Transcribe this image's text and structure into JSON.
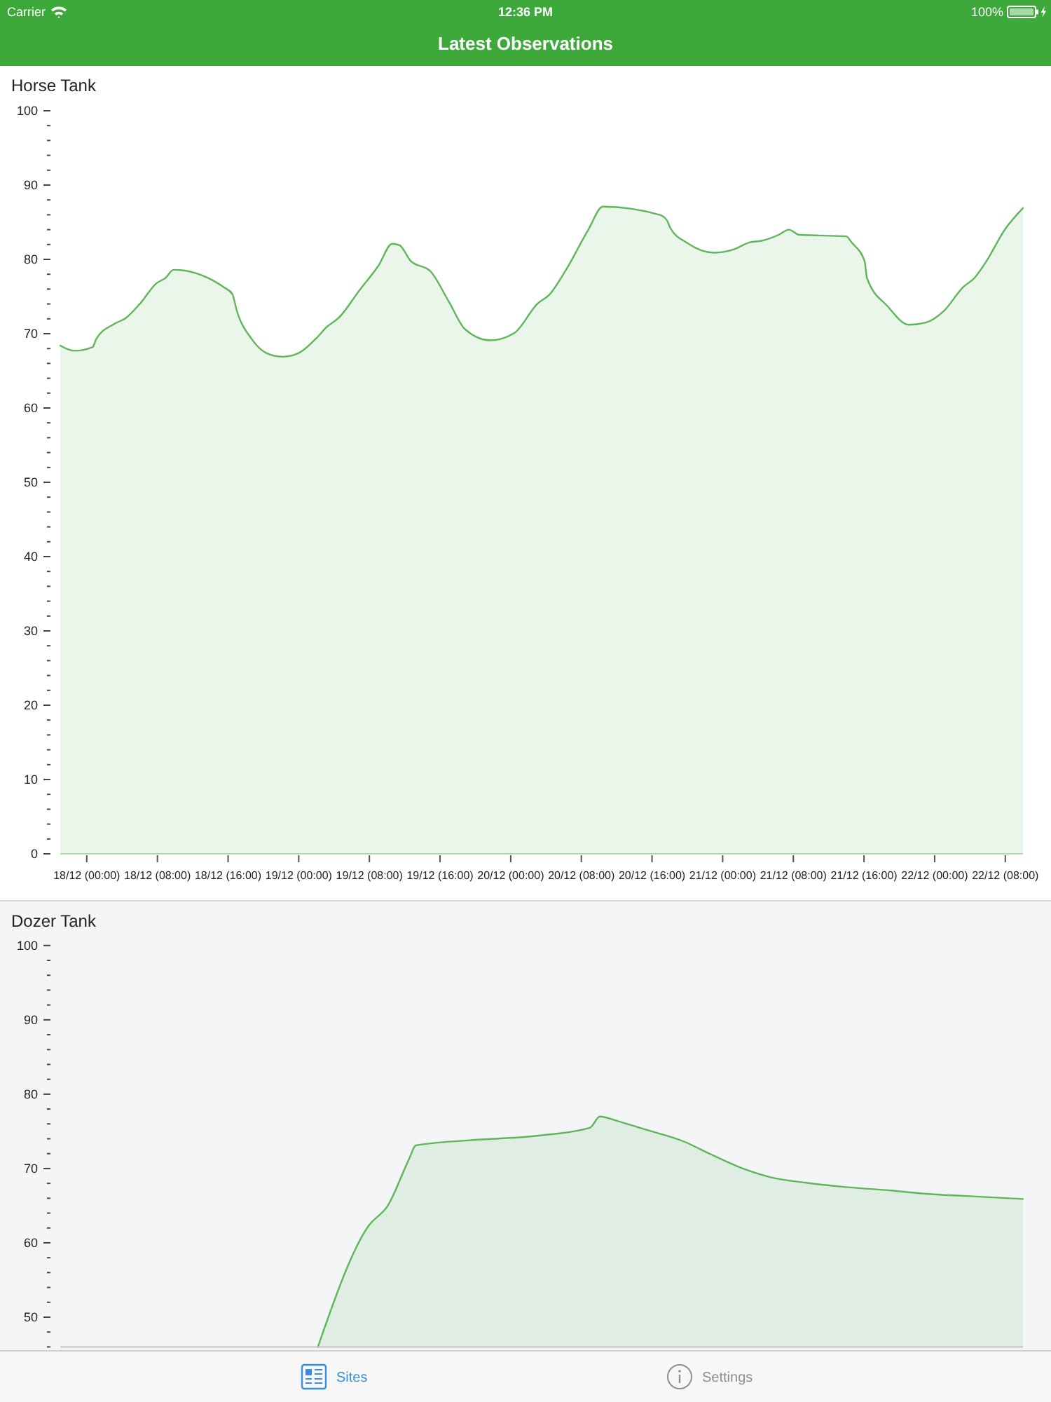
{
  "chart_data": [
    {
      "type": "area",
      "title": "Horse Tank",
      "color": "#5fb65a",
      "x": [
        "--12-17T21:00",
        "--12-17T22:35",
        "--12-18T00:40",
        "--12-18T01:05",
        "--12-18T03:05",
        "--12-18T04:25",
        "--12-18T06:00",
        "--12-18T07:55",
        "--12-18T08:55",
        "--12-18T09:50",
        "--12-18T15:35",
        "--12-18T16:30",
        "--12-18T16:55",
        "--12-18T18:40",
        "--12-18T20:20",
        "--12-18T22:10",
        "--12-19T00:00",
        "--12-19T02:10",
        "--12-19T03:10",
        "--12-19T04:30",
        "--12-19T06:55",
        "--12-19T09:00",
        "--12-19T10:35",
        "--12-19T11:25",
        "--12-19T12:40",
        "--12-19T14:55",
        "--12-19T17:00",
        "--12-19T18:50",
        "--12-19T21:40",
        "--12-20T00:25",
        "--12-20T03:00",
        "--12-20T04:25",
        "--12-20T06:10",
        "--12-20T08:50",
        "--12-20T10:25",
        "--12-20T16:50",
        "--12-20T17:40",
        "--12-20T18:05",
        "--12-20T20:00",
        "--12-20T23:05",
        "--12-21T01:10",
        "--12-21T03:05",
        "--12-21T04:25",
        "--12-21T06:20",
        "--12-21T07:30",
        "--12-21T08:40",
        "--12-21T14:00",
        "--12-21T14:35",
        "--12-21T16:05",
        "--12-21T16:20",
        "--12-21T18:40",
        "--12-21T21:05",
        "--12-21T23:00",
        "--12-22T01:05",
        "--12-22T03:10",
        "--12-22T04:30",
        "--12-22T05:50",
        "--12-22T08:00",
        "--12-22T10:00"
      ],
      "values": [
        68.4,
        67.7,
        68.2,
        69.3,
        71.3,
        72.1,
        74.0,
        76.8,
        77.5,
        78.6,
        76.2,
        75.3,
        73.4,
        69.3,
        67.4,
        66.9,
        67.4,
        69.6,
        70.9,
        72.1,
        75.9,
        79.1,
        82.1,
        81.9,
        79.8,
        78.4,
        74.3,
        70.6,
        69.1,
        70.1,
        74.0,
        75.3,
        78.4,
        84.1,
        87.1,
        86.0,
        85.3,
        84.2,
        82.2,
        80.9,
        81.3,
        82.3,
        82.5,
        83.3,
        84.0,
        83.3,
        83.1,
        82.3,
        79.7,
        77.5,
        73.7,
        71.2,
        71.5,
        73.1,
        76.2,
        77.5,
        79.7,
        84.1,
        86.9
      ],
      "xlim": [
        "--12-17T21:00",
        "--12-22T10:00"
      ],
      "xticks": [
        {
          "value": "--12-18T00:00",
          "label": "18/12 (00:00)"
        },
        {
          "value": "--12-18T08:00",
          "label": "18/12 (08:00)"
        },
        {
          "value": "--12-18T16:00",
          "label": "18/12 (16:00)"
        },
        {
          "value": "--12-19T00:00",
          "label": "19/12 (00:00)"
        },
        {
          "value": "--12-19T08:00",
          "label": "19/12 (08:00)"
        },
        {
          "value": "--12-19T16:00",
          "label": "19/12 (16:00)"
        },
        {
          "value": "--12-20T00:00",
          "label": "20/12 (00:00)"
        },
        {
          "value": "--12-20T08:00",
          "label": "20/12 (08:00)"
        },
        {
          "value": "--12-20T16:00",
          "label": "20/12 (16:00)"
        },
        {
          "value": "--12-21T00:00",
          "label": "21/12 (00:00)"
        },
        {
          "value": "--12-21T08:00",
          "label": "21/12 (08:00)"
        },
        {
          "value": "--12-21T16:00",
          "label": "21/12 (16:00)"
        },
        {
          "value": "--12-22T00:00",
          "label": "22/12 (00:00)"
        },
        {
          "value": "--12-22T08:00",
          "label": "22/12 (08:00)"
        }
      ],
      "ylim": [
        0,
        100
      ],
      "yticks": [
        100,
        {
          "value": 98,
          "label": null
        },
        {
          "value": 96,
          "label": null
        },
        {
          "value": 94,
          "label": null
        },
        {
          "value": 92,
          "label": null
        },
        90,
        {
          "value": 88,
          "label": null
        },
        {
          "value": 86,
          "label": null
        },
        {
          "value": 84,
          "label": null
        },
        {
          "value": 82,
          "label": null
        },
        80,
        {
          "value": 78,
          "label": null
        },
        {
          "value": 76,
          "label": null
        },
        {
          "value": 74,
          "label": null
        },
        {
          "value": 72,
          "label": null
        },
        70,
        {
          "value": 68,
          "label": null
        },
        {
          "value": 66,
          "label": null
        },
        {
          "value": 64,
          "label": null
        },
        {
          "value": 62,
          "label": null
        },
        60,
        {
          "value": 58,
          "label": null
        },
        {
          "value": 56,
          "label": null
        },
        {
          "value": 54,
          "label": null
        },
        {
          "value": 52,
          "label": null
        },
        50,
        {
          "value": 48,
          "label": null
        },
        {
          "value": 46,
          "label": null
        },
        {
          "value": 44,
          "label": null
        },
        {
          "value": 42,
          "label": null
        },
        40,
        {
          "value": 38,
          "label": null
        },
        {
          "value": 36,
          "label": null
        },
        {
          "value": 34,
          "label": null
        },
        {
          "value": 32,
          "label": null
        },
        30,
        {
          "value": 28,
          "label": null
        },
        {
          "value": 26,
          "label": null
        },
        {
          "value": 24,
          "label": null
        },
        {
          "value": 22,
          "label": null
        },
        20,
        {
          "value": 18,
          "label": null
        },
        {
          "value": 16,
          "label": null
        },
        {
          "value": 14,
          "label": null
        },
        {
          "value": 12,
          "label": null
        },
        10,
        {
          "value": 8,
          "label": null
        },
        {
          "value": 6,
          "label": null
        },
        {
          "value": 4,
          "label": null
        },
        {
          "value": 2,
          "label": null
        },
        0
      ],
      "annotations": [
        "Carrier",
        "12:36 PM",
        "100%",
        "Latest Observations"
      ]
    },
    {
      "type": "area",
      "title": "Dozer Tank",
      "color": "#5fb65a",
      "x": [
        "--12-19T02:10",
        "--12-19T07:55",
        "--12-19T10:05",
        "--12-19T12:30",
        "--12-19T13:15",
        "--12-19T19:20",
        "--12-20T02:55",
        "--12-20T09:00",
        "--12-20T10:05",
        "--12-20T12:05",
        "--12-20T15:05",
        "--12-20T19:40",
        "--12-20T22:40",
        "--12-21T02:30",
        "--12-21T05:30",
        "--12-21T09:20",
        "--12-21T13:55",
        "--12-21T18:25",
        "--12-21T23:00",
        "--12-22T03:35",
        "--12-22T10:00"
      ],
      "values": [
        46.0,
        62.3,
        65.0,
        71.3,
        73.1,
        73.8,
        74.4,
        75.5,
        77.0,
        76.4,
        75.3,
        73.6,
        71.9,
        69.9,
        68.8,
        68.1,
        67.5,
        67.1,
        66.6,
        66.3,
        65.9
      ],
      "xlim": [
        "--12-17T21:00",
        "--12-22T10:00"
      ],
      "ylim": [
        46,
        100
      ],
      "yticks": [
        100,
        {
          "value": 98,
          "label": null
        },
        {
          "value": 96,
          "label": null
        },
        {
          "value": 94,
          "label": null
        },
        {
          "value": 92,
          "label": null
        },
        90,
        {
          "value": 88,
          "label": null
        },
        {
          "value": 86,
          "label": null
        },
        {
          "value": 84,
          "label": null
        },
        {
          "value": 82,
          "label": null
        },
        80,
        {
          "value": 78,
          "label": null
        },
        {
          "value": 76,
          "label": null
        },
        {
          "value": 74,
          "label": null
        },
        {
          "value": 72,
          "label": null
        },
        70,
        {
          "value": 68,
          "label": null
        },
        {
          "value": 66,
          "label": null
        },
        {
          "value": 64,
          "label": null
        },
        {
          "value": 62,
          "label": null
        },
        60,
        {
          "value": 58,
          "label": null
        },
        {
          "value": 56,
          "label": null
        },
        {
          "value": 54,
          "label": null
        },
        {
          "value": 52,
          "label": null
        },
        50,
        {
          "value": 48,
          "label": null
        },
        {
          "value": 46,
          "label": null
        }
      ],
      "tick_labels": "y",
      "annotations": [
        "Sites",
        "Settings"
      ]
    }
  ]
}
